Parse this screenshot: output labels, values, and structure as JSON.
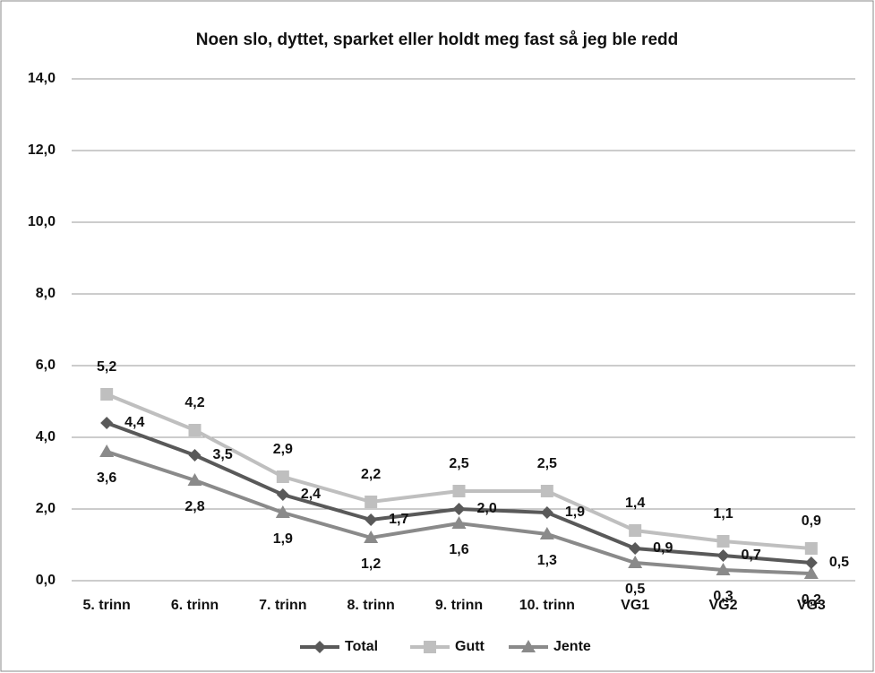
{
  "chart_data": {
    "type": "line",
    "title": "Noen slo, dyttet, sparket eller holdt meg fast så jeg ble redd",
    "categories": [
      "5. trinn",
      "6. trinn",
      "7. trinn",
      "8. trinn",
      "9. trinn",
      "10. trinn",
      "VG1",
      "VG2",
      "VG3"
    ],
    "series": [
      {
        "name": "Total",
        "color": "#595959",
        "values": [
          4.4,
          3.5,
          2.4,
          1.7,
          2.0,
          1.9,
          0.9,
          0.7,
          0.5
        ],
        "value_labels": [
          "4,4",
          "3,5",
          "2,4",
          "1,7",
          "2,0",
          "1,9",
          "0,9",
          "0,7",
          "0,5"
        ]
      },
      {
        "name": "Gutt",
        "color": "#bfbfbf",
        "values": [
          5.2,
          4.2,
          2.9,
          2.2,
          2.5,
          2.5,
          1.4,
          1.1,
          0.9
        ],
        "value_labels": [
          "5,2",
          "4,2",
          "2,9",
          "2,2",
          "2,5",
          "2,5",
          "1,4",
          "1,1",
          "0,9"
        ]
      },
      {
        "name": "Jente",
        "color": "#8a8a8a",
        "values": [
          3.6,
          2.8,
          1.9,
          1.2,
          1.6,
          1.3,
          0.5,
          0.3,
          0.2
        ],
        "value_labels": [
          "3,6",
          "2,8",
          "1,9",
          "1,2",
          "1,6",
          "1,3",
          "0,5",
          "0,3",
          "0,2"
        ]
      }
    ],
    "ylim": [
      0,
      14
    ],
    "yticks": [
      {
        "value": 0,
        "label": "0,0"
      },
      {
        "value": 2,
        "label": "2,0"
      },
      {
        "value": 4,
        "label": "4,0"
      },
      {
        "value": 6,
        "label": "6,0"
      },
      {
        "value": 8,
        "label": "8,0"
      },
      {
        "value": 10,
        "label": "10,0"
      },
      {
        "value": 12,
        "label": "12,0"
      },
      {
        "value": 14,
        "label": "14,0"
      }
    ],
    "grid": true,
    "legend": "bottom"
  }
}
